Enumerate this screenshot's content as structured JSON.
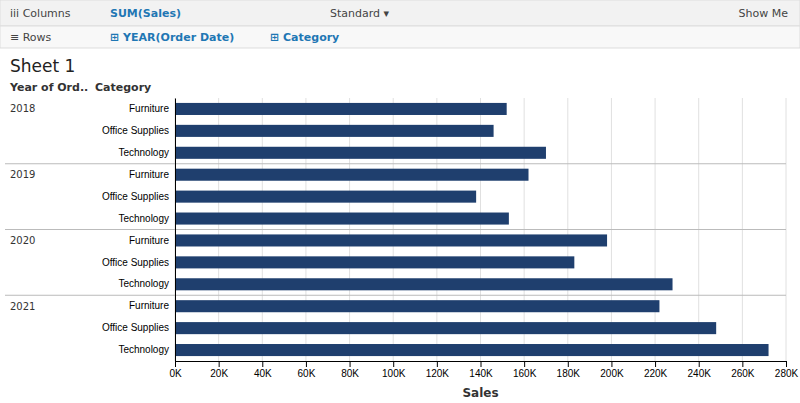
{
  "chart_data": {
    "type": "bar",
    "orientation": "horizontal",
    "title": "Sheet 1",
    "xlabel": "Sales",
    "color": "#1f3f6e",
    "grid": true,
    "annotations": [
      "iii  Columns",
      "SUM(Sales)",
      "≡  Rows",
      "⊞ YEAR(Order Date)",
      "⊞ Category",
      "Standard  ▾",
      "Show Me"
    ],
    "column_headers": [
      "Year of Ord..",
      "Category"
    ],
    "group_labels": [
      "2018",
      null,
      null,
      "2019",
      null,
      null,
      "2020",
      null,
      null,
      "2021",
      null,
      null
    ],
    "categories": [
      "Furniture",
      "Office Supplies",
      "Technology",
      "Furniture",
      "Office Supplies",
      "Technology",
      "Furniture",
      "Office Supplies",
      "Technology",
      "Furniture",
      "Office Supplies",
      "Technology"
    ],
    "values": [
      152000,
      146000,
      170000,
      162000,
      138000,
      153000,
      198000,
      183000,
      228000,
      222000,
      248000,
      272000
    ],
    "xlim": [
      0,
      280000
    ],
    "xticks": [
      {
        "value": 0,
        "label": "0K"
      },
      {
        "value": 20000,
        "label": "20K"
      },
      {
        "value": 40000,
        "label": "40K"
      },
      {
        "value": 60000,
        "label": "60K"
      },
      {
        "value": 80000,
        "label": "80K"
      },
      {
        "value": 100000,
        "label": "100K"
      },
      {
        "value": 120000,
        "label": "120K"
      },
      {
        "value": 140000,
        "label": "140K"
      },
      {
        "value": 160000,
        "label": "160K"
      },
      {
        "value": 180000,
        "label": "180K"
      },
      {
        "value": 200000,
        "label": "200K"
      },
      {
        "value": 220000,
        "label": "220K"
      },
      {
        "value": 240000,
        "label": "240K"
      },
      {
        "value": 260000,
        "label": "260K"
      },
      {
        "value": 280000,
        "label": "280K"
      }
    ]
  }
}
